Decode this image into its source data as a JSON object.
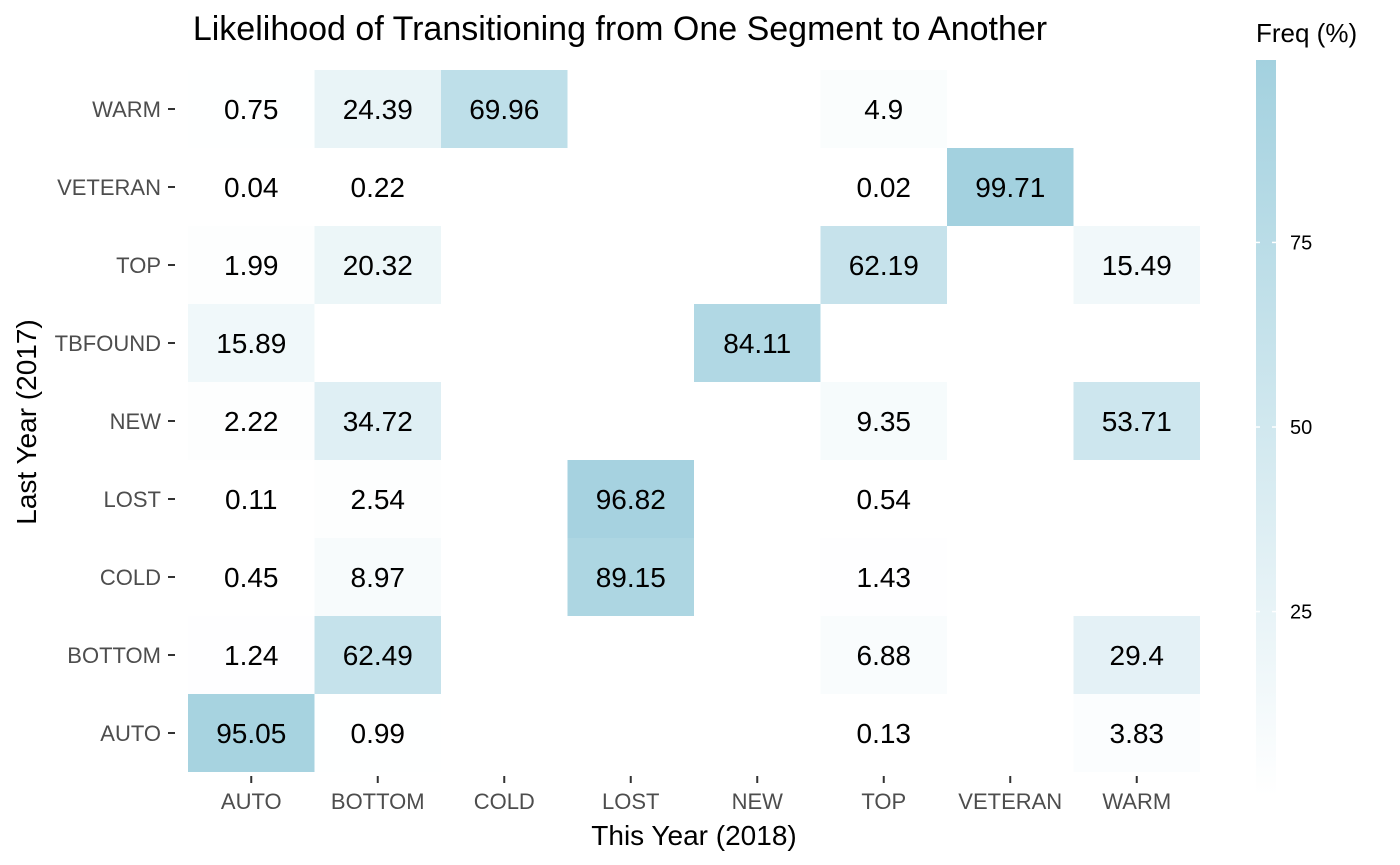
{
  "chart_data": {
    "type": "heatmap",
    "title": "Likelihood of Transitioning from One Segment to Another",
    "xlabel": "This Year (2018)",
    "ylabel": "Last Year (2017)",
    "x_categories": [
      "AUTO",
      "BOTTOM",
      "COLD",
      "LOST",
      "NEW",
      "TOP",
      "VETERAN",
      "WARM"
    ],
    "y_categories": [
      "AUTO",
      "BOTTOM",
      "COLD",
      "LOST",
      "NEW",
      "TBFOUND",
      "TOP",
      "VETERAN",
      "WARM"
    ],
    "cells": [
      {
        "y": "WARM",
        "x": "AUTO",
        "value": 0.75,
        "label": "0.75"
      },
      {
        "y": "WARM",
        "x": "BOTTOM",
        "value": 24.39,
        "label": "24.39"
      },
      {
        "y": "WARM",
        "x": "COLD",
        "value": 69.96,
        "label": "69.96"
      },
      {
        "y": "WARM",
        "x": "TOP",
        "value": 4.9,
        "label": "4.9"
      },
      {
        "y": "VETERAN",
        "x": "AUTO",
        "value": 0.04,
        "label": "0.04"
      },
      {
        "y": "VETERAN",
        "x": "BOTTOM",
        "value": 0.22,
        "label": "0.22"
      },
      {
        "y": "VETERAN",
        "x": "TOP",
        "value": 0.02,
        "label": "0.02"
      },
      {
        "y": "VETERAN",
        "x": "VETERAN",
        "value": 99.71,
        "label": "99.71"
      },
      {
        "y": "TOP",
        "x": "AUTO",
        "value": 1.99,
        "label": "1.99"
      },
      {
        "y": "TOP",
        "x": "BOTTOM",
        "value": 20.32,
        "label": "20.32"
      },
      {
        "y": "TOP",
        "x": "TOP",
        "value": 62.19,
        "label": "62.19"
      },
      {
        "y": "TOP",
        "x": "WARM",
        "value": 15.49,
        "label": "15.49"
      },
      {
        "y": "TBFOUND",
        "x": "AUTO",
        "value": 15.89,
        "label": "15.89"
      },
      {
        "y": "TBFOUND",
        "x": "NEW",
        "value": 84.11,
        "label": "84.11"
      },
      {
        "y": "NEW",
        "x": "AUTO",
        "value": 2.22,
        "label": "2.22"
      },
      {
        "y": "NEW",
        "x": "BOTTOM",
        "value": 34.72,
        "label": "34.72"
      },
      {
        "y": "NEW",
        "x": "TOP",
        "value": 9.35,
        "label": "9.35"
      },
      {
        "y": "NEW",
        "x": "WARM",
        "value": 53.71,
        "label": "53.71"
      },
      {
        "y": "LOST",
        "x": "AUTO",
        "value": 0.11,
        "label": "0.11"
      },
      {
        "y": "LOST",
        "x": "BOTTOM",
        "value": 2.54,
        "label": "2.54"
      },
      {
        "y": "LOST",
        "x": "LOST",
        "value": 96.82,
        "label": "96.82"
      },
      {
        "y": "LOST",
        "x": "TOP",
        "value": 0.54,
        "label": "0.54"
      },
      {
        "y": "COLD",
        "x": "AUTO",
        "value": 0.45,
        "label": "0.45"
      },
      {
        "y": "COLD",
        "x": "BOTTOM",
        "value": 8.97,
        "label": "8.97"
      },
      {
        "y": "COLD",
        "x": "LOST",
        "value": 89.15,
        "label": "89.15"
      },
      {
        "y": "COLD",
        "x": "TOP",
        "value": 1.43,
        "label": "1.43"
      },
      {
        "y": "BOTTOM",
        "x": "AUTO",
        "value": 1.24,
        "label": "1.24"
      },
      {
        "y": "BOTTOM",
        "x": "BOTTOM",
        "value": 62.49,
        "label": "62.49"
      },
      {
        "y": "BOTTOM",
        "x": "TOP",
        "value": 6.88,
        "label": "6.88"
      },
      {
        "y": "BOTTOM",
        "x": "WARM",
        "value": 29.4,
        "label": "29.4"
      },
      {
        "y": "AUTO",
        "x": "AUTO",
        "value": 95.05,
        "label": "95.05"
      },
      {
        "y": "AUTO",
        "x": "BOTTOM",
        "value": 0.99,
        "label": "0.99"
      },
      {
        "y": "AUTO",
        "x": "TOP",
        "value": 0.13,
        "label": "0.13"
      },
      {
        "y": "AUTO",
        "x": "WARM",
        "value": 3.83,
        "label": "3.83"
      }
    ],
    "legend": {
      "title": "Freq (%)",
      "ticks": [
        {
          "value": 25,
          "label": "25"
        },
        {
          "value": 50,
          "label": "50"
        },
        {
          "value": 75,
          "label": "75"
        }
      ],
      "range": [
        0.02,
        99.71
      ],
      "placement": "right"
    },
    "color_low": "#ffffff",
    "color_high": "#a3d1df",
    "grid": false
  }
}
